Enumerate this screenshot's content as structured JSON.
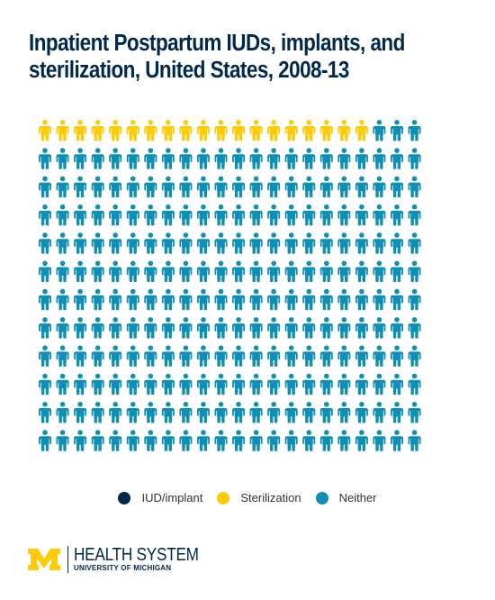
{
  "title_lines": [
    "Inpatient Postpartum IUDs, implants, and",
    "sterilization, United States, 2008-13"
  ],
  "colors": {
    "iud_implant": "#00274c",
    "sterilization": "#ffcb05",
    "neither": "#0e8fb3",
    "title": "#00274c"
  },
  "chart_data": {
    "type": "pictogram",
    "title": "Inpatient Postpartum IUDs, implants, and sterilization, United States, 2008-13",
    "unit_icon": "person-icon",
    "total_icons": 264,
    "rows": 12,
    "columns": 22,
    "categories": [
      "IUD/implant",
      "Sterilization",
      "Neither"
    ],
    "values": [
      0,
      19,
      245
    ],
    "legend_position": "bottom-center"
  },
  "legend": [
    {
      "label": "IUD/implant",
      "color": "#00274c"
    },
    {
      "label": "Sterilization",
      "color": "#ffcb05"
    },
    {
      "label": "Neither",
      "color": "#0e8fb3"
    }
  ],
  "logo": {
    "line1": "HEALTH SYSTEM",
    "line2": "UNIVERSITY OF MICHIGAN",
    "mark_color": "#ffcb05",
    "text_color": "#00274c"
  }
}
